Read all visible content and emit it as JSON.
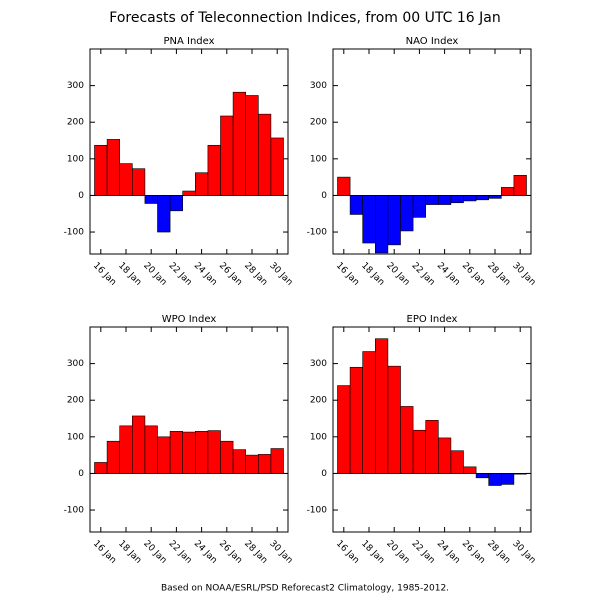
{
  "title": "Forecasts of Teleconnection Indices, from 00 UTC 16 Jan",
  "footnote": "Based on NOAA/ESRL/PSD Reforecast2 Climatology, 1985-2012.",
  "chart_data": [
    {
      "type": "bar",
      "title": "PNA Index",
      "categories": [
        "16 Jan",
        null,
        "18 Jan",
        null,
        "20 Jan",
        null,
        "22 Jan",
        null,
        "24 Jan",
        null,
        "26 Jan",
        null,
        "28 Jan",
        null,
        "30 Jan"
      ],
      "values": [
        137,
        153,
        87,
        73,
        -22,
        -100,
        -42,
        12,
        62,
        137,
        217,
        282,
        273,
        222,
        157
      ],
      "colors": {
        "positive": "#ff0000",
        "negative": "#0000ff"
      },
      "ylim": [
        -160,
        400
      ],
      "yticks": [
        -100,
        0,
        100,
        200,
        300
      ]
    },
    {
      "type": "bar",
      "title": "NAO Index",
      "categories": [
        "16 Jan",
        null,
        "18 Jan",
        null,
        "20 Jan",
        null,
        "22 Jan",
        null,
        "24 Jan",
        null,
        "26 Jan",
        null,
        "28 Jan",
        null,
        "30 Jan"
      ],
      "values": [
        50,
        -52,
        -130,
        -157,
        -135,
        -97,
        -60,
        -25,
        -25,
        -20,
        -15,
        -12,
        -8,
        22,
        55
      ],
      "colors": {
        "positive": "#ff0000",
        "negative": "#0000ff"
      },
      "ylim": [
        -160,
        400
      ],
      "yticks": [
        -100,
        0,
        100,
        200,
        300
      ]
    },
    {
      "type": "bar",
      "title": "WPO Index",
      "categories": [
        "16 Jan",
        null,
        "18 Jan",
        null,
        "20 Jan",
        null,
        "22 Jan",
        null,
        "24 Jan",
        null,
        "26 Jan",
        null,
        "28 Jan",
        null,
        "30 Jan"
      ],
      "values": [
        30,
        88,
        130,
        157,
        130,
        100,
        115,
        113,
        115,
        117,
        88,
        65,
        50,
        52,
        68
      ],
      "colors": {
        "positive": "#ff0000",
        "negative": "#0000ff"
      },
      "ylim": [
        -160,
        400
      ],
      "yticks": [
        -100,
        0,
        100,
        200,
        300
      ]
    },
    {
      "type": "bar",
      "title": "EPO Index",
      "categories": [
        "16 Jan",
        null,
        "18 Jan",
        null,
        "20 Jan",
        null,
        "22 Jan",
        null,
        "24 Jan",
        null,
        "26 Jan",
        null,
        "28 Jan",
        null,
        "30 Jan"
      ],
      "values": [
        240,
        290,
        333,
        368,
        293,
        183,
        118,
        145,
        97,
        62,
        18,
        -12,
        -33,
        -30,
        -2
      ],
      "colors": {
        "positive": "#ff0000",
        "negative": "#0000ff"
      },
      "ylim": [
        -160,
        400
      ],
      "yticks": [
        -100,
        0,
        100,
        200,
        300
      ]
    }
  ]
}
